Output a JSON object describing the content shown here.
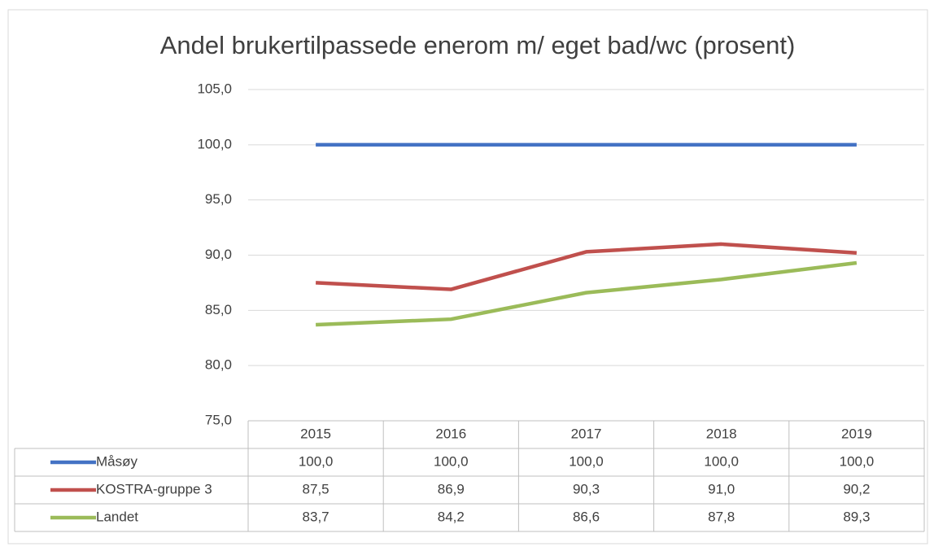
{
  "chart_data": {
    "type": "line",
    "title": "Andel brukertilpassede enerom m/ eget bad/wc (prosent)",
    "categories": [
      "2015",
      "2016",
      "2017",
      "2018",
      "2019"
    ],
    "series": [
      {
        "name": "Måsøy",
        "color": "#4472c4",
        "values": [
          100.0,
          100.0,
          100.0,
          100.0,
          100.0
        ],
        "value_labels": [
          "100,0",
          "100,0",
          "100,0",
          "100,0",
          "100,0"
        ]
      },
      {
        "name": "KOSTRA-gruppe 3",
        "color": "#c0504d",
        "values": [
          87.5,
          86.9,
          90.3,
          91.0,
          90.2
        ],
        "value_labels": [
          "87,5",
          "86,9",
          "90,3",
          "91,0",
          "90,2"
        ]
      },
      {
        "name": "Landet",
        "color": "#9bbb59",
        "values": [
          83.7,
          84.2,
          86.6,
          87.8,
          89.3
        ],
        "value_labels": [
          "83,7",
          "84,2",
          "86,6",
          "87,8",
          "89,3"
        ]
      }
    ],
    "ylim": [
      75,
      105
    ],
    "yticks": [
      {
        "value": 75,
        "label": "75,0"
      },
      {
        "value": 80,
        "label": "80,0"
      },
      {
        "value": 85,
        "label": "85,0"
      },
      {
        "value": 90,
        "label": "90,0"
      },
      {
        "value": 95,
        "label": "95,0"
      },
      {
        "value": 100,
        "label": "100,0"
      },
      {
        "value": 105,
        "label": "105,0"
      }
    ],
    "grid": true
  }
}
